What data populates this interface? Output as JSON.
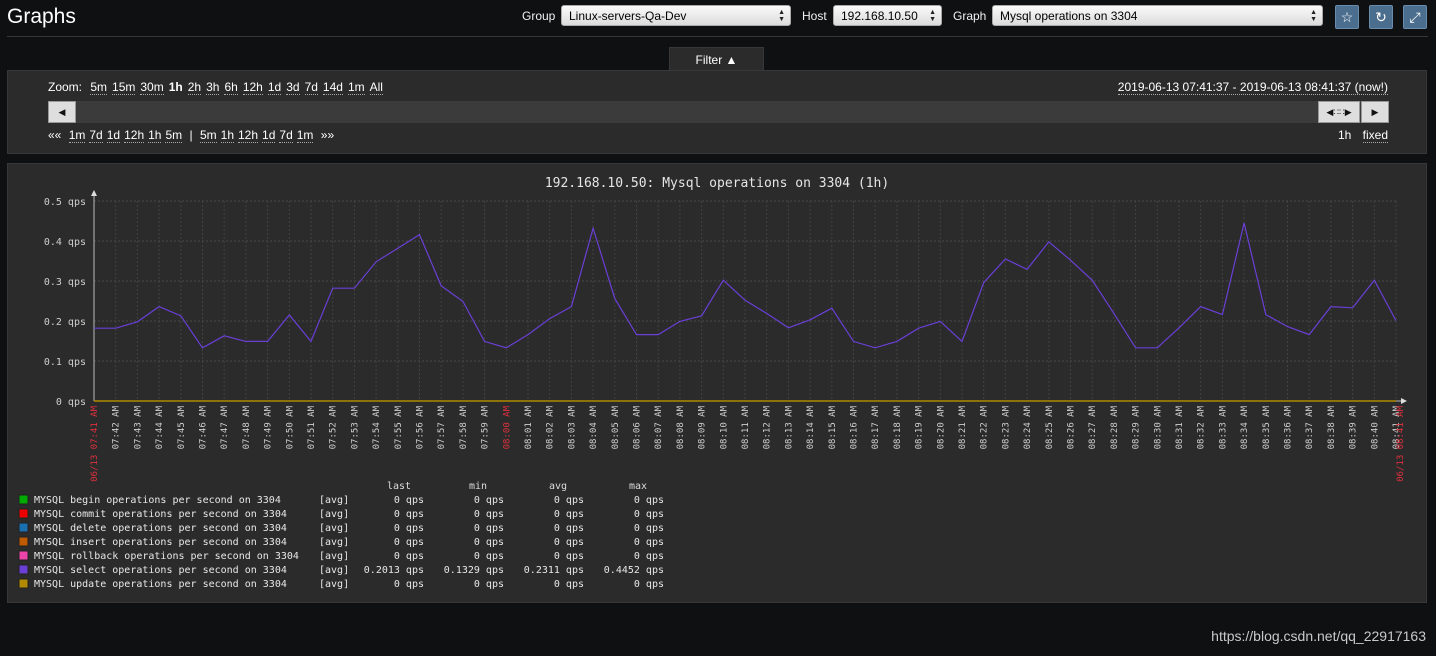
{
  "header": {
    "title": "Graphs",
    "group_label": "Group",
    "group_value": "Linux-servers-Qa-Dev",
    "host_label": "Host",
    "host_value": "192.168.10.50",
    "graph_label": "Graph",
    "graph_value": "Mysql operations on 3304",
    "buttons": [
      "star-icon",
      "refresh-icon",
      "fullscreen-icon"
    ]
  },
  "filter": {
    "tab_label": "Filter ▲",
    "zoom_label": "Zoom:",
    "zoom_options": [
      "5m",
      "15m",
      "30m",
      "1h",
      "2h",
      "3h",
      "6h",
      "12h",
      "1d",
      "3d",
      "7d",
      "14d",
      "1m",
      "All"
    ],
    "zoom_active": "1h",
    "time_range": "2019-06-13 07:41:37 - 2019-06-13 08:41:37 (now!)",
    "back_first": "««",
    "back_steps": [
      "1m",
      "7d",
      "1d",
      "12h",
      "1h",
      "5m"
    ],
    "separator": "|",
    "forward_steps": [
      "5m",
      "1h",
      "12h",
      "1d",
      "7d",
      "1m"
    ],
    "forward_last": "»»",
    "period_value": "1h",
    "period_mode": "fixed"
  },
  "chart_data": {
    "type": "line",
    "title": "192.168.10.50: Mysql operations on 3304 (1h)",
    "ylim": [
      0,
      0.5
    ],
    "y_ticks": [
      "0.5 qps",
      "0.4 qps",
      "0.3 qps",
      "0.2 qps",
      "0.1 qps",
      "0 qps"
    ],
    "grid": true,
    "x_start_label": "06/13 07:41 AM",
    "x_end_label": "06/13 08:41 AM",
    "x_highlight_label": "08:00 AM",
    "x_tick_labels": [
      "07:42 AM",
      "07:43 AM",
      "07:44 AM",
      "07:45 AM",
      "07:46 AM",
      "07:47 AM",
      "07:48 AM",
      "07:49 AM",
      "07:50 AM",
      "07:51 AM",
      "07:52 AM",
      "07:53 AM",
      "07:54 AM",
      "07:55 AM",
      "07:56 AM",
      "07:57 AM",
      "07:58 AM",
      "07:59 AM",
      "08:00 AM",
      "08:01 AM",
      "08:02 AM",
      "08:03 AM",
      "08:04 AM",
      "08:05 AM",
      "08:06 AM",
      "08:07 AM",
      "08:08 AM",
      "08:09 AM",
      "08:10 AM",
      "08:11 AM",
      "08:12 AM",
      "08:13 AM",
      "08:14 AM",
      "08:15 AM",
      "08:16 AM",
      "08:17 AM",
      "08:18 AM",
      "08:19 AM",
      "08:20 AM",
      "08:21 AM",
      "08:22 AM",
      "08:23 AM",
      "08:24 AM",
      "08:25 AM",
      "08:26 AM",
      "08:27 AM",
      "08:28 AM",
      "08:29 AM",
      "08:30 AM",
      "08:31 AM",
      "08:32 AM",
      "08:33 AM",
      "08:34 AM",
      "08:35 AM",
      "08:36 AM",
      "08:37 AM",
      "08:38 AM",
      "08:39 AM",
      "08:40 AM",
      "08:41 AM"
    ],
    "series": [
      {
        "name": "MYSQL begin operations per second on 3304",
        "color": "#00aa00",
        "func": "[avg]",
        "last": "0 qps",
        "min": "0 qps",
        "avg": "0 qps",
        "max": "0 qps",
        "values": "zero"
      },
      {
        "name": "MYSQL commit operations per second on 3304",
        "color": "#ee0000",
        "func": "[avg]",
        "last": "0 qps",
        "min": "0 qps",
        "avg": "0 qps",
        "max": "0 qps",
        "values": "zero"
      },
      {
        "name": "MYSQL delete operations per second on 3304",
        "color": "#1a6fb0",
        "func": "[avg]",
        "last": "0 qps",
        "min": "0 qps",
        "avg": "0 qps",
        "max": "0 qps",
        "values": "zero"
      },
      {
        "name": "MYSQL insert operations per second on 3304",
        "color": "#c05a00",
        "func": "[avg]",
        "last": "0 qps",
        "min": "0 qps",
        "avg": "0 qps",
        "max": "0 qps",
        "values": "zero"
      },
      {
        "name": "MYSQL rollback operations per second on 3304",
        "color": "#ee44aa",
        "func": "[avg]",
        "last": "0 qps",
        "min": "0 qps",
        "avg": "0 qps",
        "max": "0 qps",
        "values": "zero"
      },
      {
        "name": "MYSQL select operations per second on 3304",
        "color": "#6a3fd6",
        "func": "[avg]",
        "last": "0.2013 qps",
        "min": "0.1329 qps",
        "avg": "0.2311 qps",
        "max": "0.4452 qps",
        "values": [
          0.182,
          0.182,
          0.198,
          0.236,
          0.213,
          0.133,
          0.163,
          0.149,
          0.149,
          0.215,
          0.149,
          0.282,
          0.282,
          0.348,
          0.382,
          0.416,
          0.288,
          0.249,
          0.149,
          0.133,
          0.166,
          0.206,
          0.236,
          0.432,
          0.256,
          0.166,
          0.166,
          0.199,
          0.213,
          0.302,
          0.252,
          0.219,
          0.183,
          0.203,
          0.232,
          0.149,
          0.133,
          0.149,
          0.182,
          0.199,
          0.149,
          0.296,
          0.355,
          0.329,
          0.398,
          0.352,
          0.302,
          0.219,
          0.133,
          0.133,
          0.183,
          0.236,
          0.216,
          0.445,
          0.216,
          0.186,
          0.166,
          0.236,
          0.233,
          0.302,
          0.201
        ]
      },
      {
        "name": "MYSQL update operations per second on 3304",
        "color": "#b08a00",
        "func": "[avg]",
        "last": "0 qps",
        "min": "0 qps",
        "avg": "0 qps",
        "max": "0 qps",
        "values": "zero"
      }
    ],
    "legend_headers": [
      "last",
      "min",
      "avg",
      "max"
    ]
  },
  "watermark": "https://blog.csdn.net/qq_22917163"
}
